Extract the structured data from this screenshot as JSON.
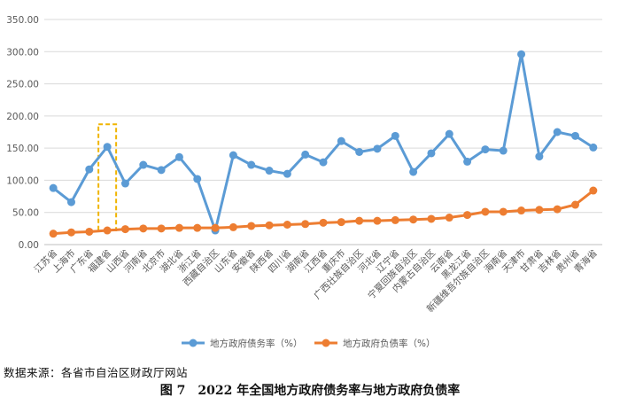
{
  "chart_data": {
    "type": "line",
    "title": "",
    "xlabel": "",
    "ylabel": "",
    "ylim": [
      0,
      350
    ],
    "yticks": [
      "0.00",
      "50.00",
      "100.00",
      "150.00",
      "200.00",
      "250.00",
      "300.00",
      "350.00"
    ],
    "grid": "horizontal",
    "legend_position": "bottom",
    "categories": [
      "江苏省",
      "上海市",
      "广东省",
      "福建省",
      "山西省",
      "河南省",
      "北京市",
      "湖北省",
      "浙江省",
      "西藏自治区",
      "山东省",
      "安徽省",
      "陕西省",
      "四川省",
      "湖南省",
      "江西省",
      "重庆市",
      "广西壮族自治区",
      "河北省",
      "辽宁省",
      "宁夏回族自治区",
      "内蒙古自治区",
      "云南省",
      "黑龙江省",
      "新疆维吾尔族自治区",
      "海南省",
      "天津市",
      "甘肃省",
      "吉林省",
      "贵州省",
      "青海省"
    ],
    "series": [
      {
        "name": "地方政府债务率（%）",
        "color": "#5b9bd5",
        "values": [
          88,
          66,
          117,
          152,
          95,
          124,
          116,
          136,
          102,
          22,
          139,
          124,
          115,
          110,
          140,
          128,
          161,
          144,
          149,
          169,
          113,
          142,
          172,
          129,
          148,
          146,
          296,
          137,
          175,
          169,
          151
        ]
      },
      {
        "name": "地方政府负债率（%）",
        "color": "#ed7d31",
        "values": [
          17,
          19,
          20,
          22,
          24,
          25,
          25,
          26,
          26,
          26,
          27,
          29,
          30,
          31,
          32,
          34,
          35,
          37,
          37,
          38,
          39,
          40,
          42,
          46,
          51,
          51,
          53,
          54,
          55,
          62,
          84
        ]
      }
    ],
    "highlight": {
      "category": "福建省",
      "color": "#f0b400",
      "style": "dashed"
    }
  },
  "source_note": "数据来源：各省市自治区财政厅网站",
  "figure_caption": "图 7　2022 年全国地方政府债务率与地方政府负债率"
}
